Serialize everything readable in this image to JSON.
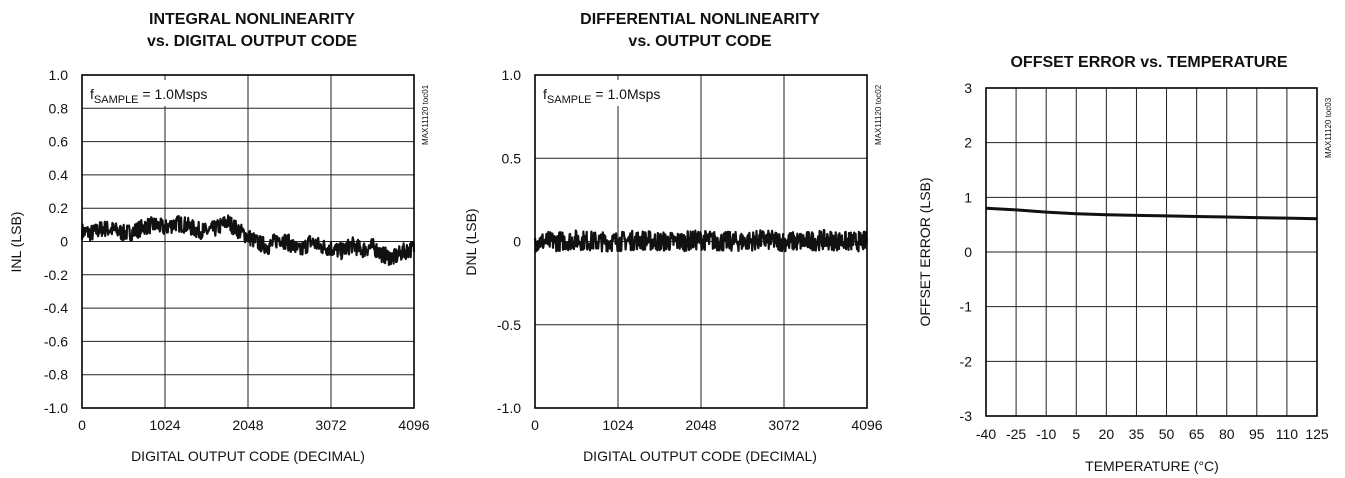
{
  "chart_data": [
    {
      "id": "inl",
      "type": "line",
      "title_line1": "INTEGRAL NONLINEARITY",
      "title_line2": "vs. DIGITAL OUTPUT CODE",
      "xlabel": "DIGITAL OUTPUT CODE (DECIMAL)",
      "ylabel": "INL (LSB)",
      "xlim": [
        0,
        4096
      ],
      "ylim": [
        -1.0,
        1.0
      ],
      "xticks": [
        0,
        1024,
        2048,
        3072,
        4096
      ],
      "xtick_labels": [
        "0",
        "1024",
        "2048",
        "3072",
        "4096"
      ],
      "yticks": [
        1.0,
        0.8,
        0.6,
        0.4,
        0.2,
        0,
        -0.2,
        -0.4,
        -0.6,
        -0.8,
        -1.0
      ],
      "ytick_labels": [
        "1.0",
        "0.8",
        "0.6",
        "0.4",
        "0.2",
        "0",
        "-0.2",
        "-0.4",
        "-0.6",
        "-0.8",
        "-1.0"
      ],
      "annotation_main": "f",
      "annotation_sub": "SAMPLE",
      "annotation_rest": " = 1.0Msps",
      "side_tag": "MAX11120 toc01",
      "grid": true,
      "series": [
        {
          "x": [
            0,
            128,
            256,
            384,
            512,
            640,
            768,
            896,
            1024,
            1152,
            1280,
            1408,
            1536,
            1664,
            1792,
            1920,
            2048,
            2176,
            2304,
            2432,
            2560,
            2688,
            2816,
            2944,
            3072,
            3200,
            3328,
            3456,
            3584,
            3712,
            3840,
            3968,
            4096
          ],
          "y": [
            0.06,
            0.05,
            0.08,
            0.07,
            0.05,
            0.06,
            0.09,
            0.1,
            0.08,
            0.11,
            0.1,
            0.07,
            0.06,
            0.08,
            0.12,
            0.07,
            0.03,
            -0.01,
            -0.03,
            0.02,
            -0.01,
            -0.06,
            0.0,
            -0.03,
            -0.04,
            -0.06,
            -0.02,
            -0.05,
            -0.03,
            -0.08,
            -0.1,
            -0.06,
            -0.04
          ],
          "band": 0.05
        }
      ]
    },
    {
      "id": "dnl",
      "type": "line",
      "title_line1": "DIFFERENTIAL NONLINEARITY",
      "title_line2": "vs. OUTPUT CODE",
      "xlabel": "DIGITAL OUTPUT CODE (DECIMAL)",
      "ylabel": "DNL (LSB)",
      "xlim": [
        0,
        4096
      ],
      "ylim": [
        -1.0,
        1.0
      ],
      "xticks": [
        0,
        1024,
        2048,
        3072,
        4096
      ],
      "xtick_labels": [
        "0",
        "1024",
        "2048",
        "3072",
        "4096"
      ],
      "yticks": [
        1.0,
        0.5,
        0,
        -0.5,
        -1.0
      ],
      "ytick_labels": [
        "1.0",
        "0.5",
        "0",
        "-0.5",
        "-1.0"
      ],
      "annotation_main": "f",
      "annotation_sub": "SAMPLE",
      "annotation_rest": " = 1.0Msps",
      "side_tag": "MAX11120 toc02",
      "grid": true,
      "series": [
        {
          "x": [
            0,
            256,
            512,
            768,
            1024,
            1280,
            1536,
            1792,
            2048,
            2304,
            2560,
            2816,
            3072,
            3328,
            3584,
            3840,
            4096
          ],
          "y": [
            0.0,
            0.0,
            0.01,
            0.0,
            0.0,
            0.01,
            0.0,
            0.0,
            0.01,
            0.0,
            0.0,
            0.01,
            0.0,
            0.0,
            0.01,
            0.0,
            0.0
          ],
          "band": 0.06
        }
      ]
    },
    {
      "id": "offset",
      "type": "line",
      "title_line1": "OFFSET ERROR vs. TEMPERATURE",
      "title_line2": "",
      "xlabel": "TEMPERATURE (°C)",
      "ylabel": "OFFSET ERROR (LSB)",
      "xlim": [
        -40,
        125
      ],
      "ylim": [
        -3,
        3
      ],
      "xticks": [
        -40,
        -25,
        -10,
        5,
        20,
        35,
        50,
        65,
        80,
        95,
        110,
        125
      ],
      "xtick_labels": [
        "-40",
        "-25",
        "-10",
        "5",
        "20",
        "35",
        "50",
        "65",
        "80",
        "95",
        "110",
        "125"
      ],
      "yticks": [
        3,
        2,
        1,
        0,
        -1,
        -2,
        -3
      ],
      "ytick_labels": [
        "3",
        "2",
        "1",
        "0",
        "-1",
        "-2",
        "-3"
      ],
      "side_tag": "MAX11120 toc03",
      "grid": true,
      "series": [
        {
          "x": [
            -40,
            -25,
            -10,
            5,
            20,
            35,
            50,
            65,
            80,
            95,
            110,
            125
          ],
          "y": [
            0.8,
            0.77,
            0.73,
            0.7,
            0.68,
            0.67,
            0.66,
            0.65,
            0.64,
            0.63,
            0.62,
            0.61
          ]
        }
      ]
    }
  ]
}
